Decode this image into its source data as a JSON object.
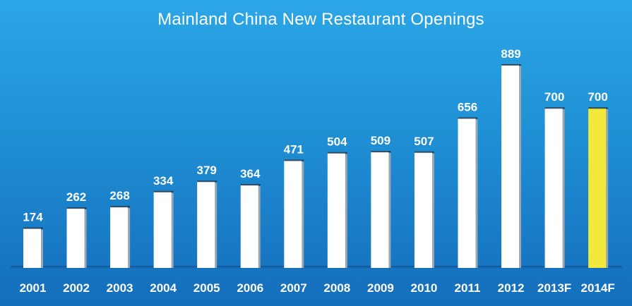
{
  "chart_data": {
    "type": "bar",
    "title": "Mainland China New Restaurant Openings",
    "xlabel": "",
    "ylabel": "",
    "categories": [
      "2001",
      "2002",
      "2003",
      "2004",
      "2005",
      "2006",
      "2007",
      "2008",
      "2009",
      "2010",
      "2011",
      "2012",
      "2013F",
      "2014F"
    ],
    "values": [
      174,
      262,
      268,
      334,
      379,
      364,
      471,
      504,
      509,
      507,
      656,
      889,
      700,
      700
    ],
    "value_labels": [
      "174",
      "262",
      "268",
      "334",
      "379",
      "364",
      "471",
      "504",
      "509",
      "507",
      "656",
      "889",
      "700",
      "700"
    ],
    "ylim": [
      0,
      900
    ],
    "grid": false,
    "legend": "none",
    "highlight_category": "2014F",
    "colors": {
      "bar": "#ffffff",
      "bar_highlight": "#f2e93c",
      "bar_shadow": "#9aa7b3",
      "background_top": "#2ba6e6",
      "background_bottom": "#146dbb",
      "baseline": "#0f4f8f",
      "text": "#ffffff"
    }
  }
}
